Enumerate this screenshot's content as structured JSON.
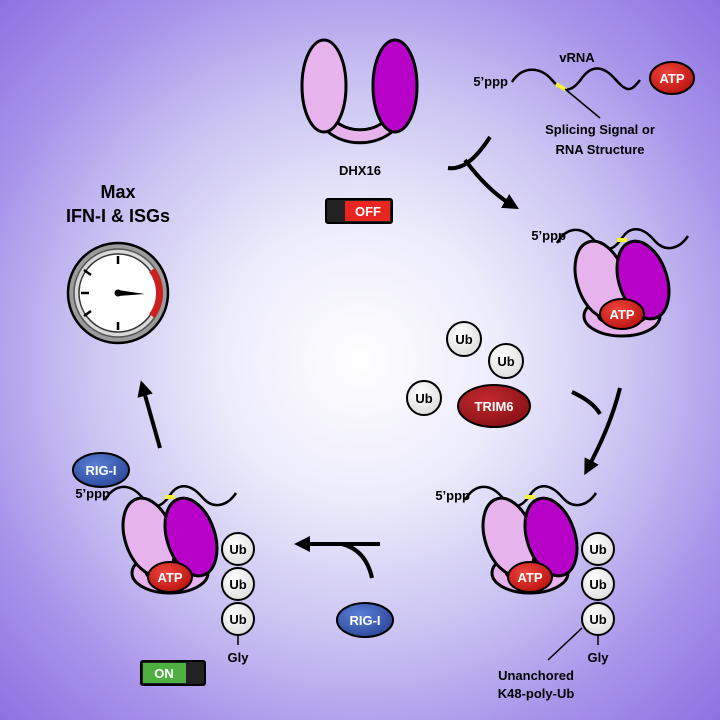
{
  "labels": {
    "vrna": "vRNA",
    "five_ppp": "5’ppp",
    "splicing_line1": "Splicing Signal or",
    "splicing_line2": "RNA Structure",
    "dhx16": "DHX16",
    "max_line1": "Max",
    "max_line2": "IFN-I & ISGs",
    "unanchored_line1": "Unanchored",
    "unanchored_line2": "K48-poly-Ub",
    "gly": "Gly"
  },
  "badges": {
    "atp": "ATP",
    "ub": "Ub",
    "trim6": "TRIM6",
    "rigi": "RIG-I"
  },
  "switches": {
    "off": "OFF",
    "on": "ON"
  },
  "colors": {
    "light_lobe": "#e6b3ec",
    "dark_lobe": "#b700c8",
    "atp_red": "#d9221e",
    "trim6": "#a8141c",
    "rigi_blue": "#3a5bb5",
    "switch_red": "#e8251f",
    "switch_green": "#4caf3f",
    "gauge_red": "#cc1f1f"
  }
}
